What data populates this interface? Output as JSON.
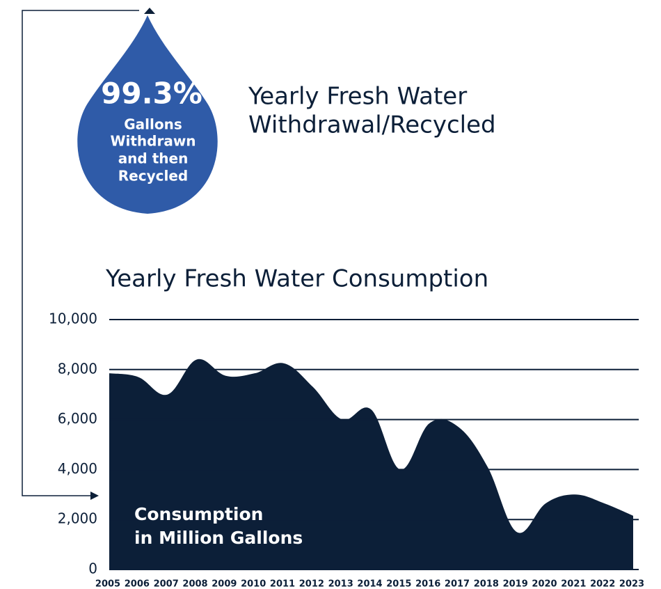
{
  "drop": {
    "value": "99.3%",
    "caption": [
      "Gallons",
      "Withdrawn",
      "and then",
      "Recycled"
    ]
  },
  "withdrawal_title": [
    "Yearly Fresh Water",
    "Withdrawal/Recycled"
  ],
  "chart_data": {
    "type": "area",
    "title": "Yearly Fresh Water Consumption",
    "annotation": [
      "Consumption",
      "in Million Gallons"
    ],
    "categories": [
      "2005",
      "2006",
      "2007",
      "2008",
      "2009",
      "2010",
      "2011",
      "2012",
      "2013",
      "2014",
      "2015",
      "2016",
      "2017",
      "2018",
      "2019",
      "2020",
      "2021",
      "2022",
      "2023"
    ],
    "values": [
      7850,
      7700,
      7000,
      8400,
      7750,
      7850,
      8250,
      7300,
      6000,
      6400,
      4000,
      5850,
      5700,
      4100,
      1500,
      2650,
      3000,
      2650,
      2150
    ],
    "color": "#0c1f38",
    "ylim": [
      0,
      10000
    ],
    "yticks": [
      0,
      {
        "value": 2000,
        "label": "2,000"
      },
      {
        "value": 4000,
        "label": "4,000"
      },
      {
        "value": 6000,
        "label": "6,000"
      },
      {
        "value": 8000,
        "label": "8,000"
      },
      {
        "value": 10000,
        "label": "10,000"
      }
    ],
    "grid": true
  }
}
